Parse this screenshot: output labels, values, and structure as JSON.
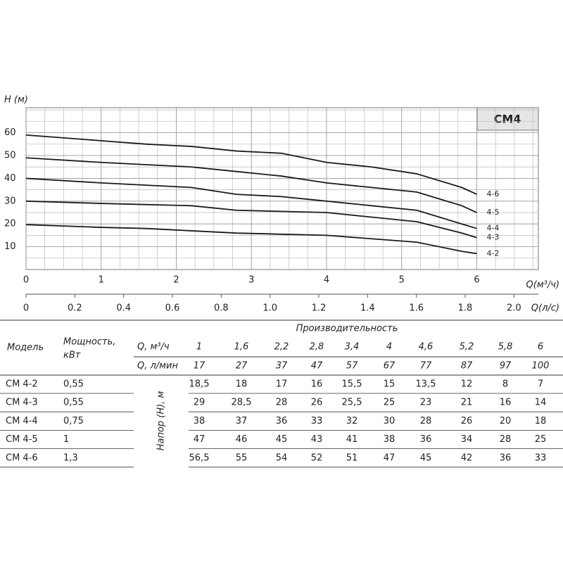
{
  "chart_data": {
    "type": "line",
    "title": "CM4",
    "y_label": "H (м)",
    "x_label": "Q(м³/ч)",
    "x2_label": "Q(л/с)",
    "x": [
      0,
      1,
      1.6,
      2.2,
      2.8,
      3.4,
      4,
      4.6,
      5.2,
      5.8,
      6
    ],
    "xlim": [
      0,
      6.82
    ],
    "xticks": [
      0,
      1,
      2,
      3,
      4,
      5,
      6
    ],
    "x2lim": [
      0,
      2.1
    ],
    "x2ticks": [
      0,
      0.2,
      0.4,
      0.6,
      0.8,
      {
        "value": 1,
        "label": "1.0"
      },
      1.2,
      1.4,
      1.6,
      1.8,
      {
        "value": 2,
        "label": "2.0"
      }
    ],
    "ylim": [
      0,
      71
    ],
    "yticks": [
      10,
      20,
      30,
      40,
      50,
      60
    ],
    "grid": true,
    "series": [
      {
        "name": "4-2",
        "color": "#1a1a1a",
        "values": [
          19.7,
          18.5,
          18,
          17,
          16,
          15.5,
          15,
          13.5,
          12,
          8,
          7
        ]
      },
      {
        "name": "4-3",
        "color": "#1a1a1a",
        "values": [
          30,
          29,
          28.5,
          28,
          26,
          25.5,
          25,
          23,
          21,
          16,
          14
        ]
      },
      {
        "name": "4-4",
        "color": "#1a1a1a",
        "values": [
          40,
          38,
          37,
          36,
          33,
          32,
          30,
          28,
          26,
          20,
          18
        ]
      },
      {
        "name": "4-5",
        "color": "#1a1a1a",
        "values": [
          49,
          47,
          46,
          45,
          43,
          41,
          38,
          36,
          34,
          28,
          25
        ]
      },
      {
        "name": "4-6",
        "color": "#1a1a1a",
        "values": [
          59,
          56.5,
          55,
          54,
          52,
          51,
          47,
          45,
          42,
          36,
          33
        ]
      }
    ]
  },
  "table": {
    "model_header": "Модель",
    "power_header": [
      "Мощность,",
      "кВт"
    ],
    "performance_header": "Производительность",
    "q_m3h_label": "Q, м³/ч",
    "q_lpm_label": "Q, л/мин",
    "head_label": "Напор (Н), м",
    "q_m3h": [
      "1",
      "1,6",
      "2,2",
      "2,8",
      "3,4",
      "4",
      "4,6",
      "5,2",
      "5,8",
      "6"
    ],
    "q_lpm": [
      "17",
      "27",
      "37",
      "47",
      "57",
      "67",
      "77",
      "87",
      "97",
      "100"
    ],
    "rows": [
      {
        "model": "CM 4-2",
        "power": "0,55",
        "head": [
          "18,5",
          "18",
          "17",
          "16",
          "15,5",
          "15",
          "13,5",
          "12",
          "8",
          "7"
        ]
      },
      {
        "model": "CM 4-3",
        "power": "0,55",
        "head": [
          "29",
          "28,5",
          "28",
          "26",
          "25,5",
          "25",
          "23",
          "21",
          "16",
          "14"
        ]
      },
      {
        "model": "CM 4-4",
        "power": "0,75",
        "head": [
          "38",
          "37",
          "36",
          "33",
          "32",
          "30",
          "28",
          "26",
          "20",
          "18"
        ]
      },
      {
        "model": "CM 4-5",
        "power": "1",
        "head": [
          "47",
          "46",
          "45",
          "43",
          "41",
          "38",
          "36",
          "34",
          "28",
          "25"
        ]
      },
      {
        "model": "CM 4-6",
        "power": "1,3",
        "head": [
          "56,5",
          "55",
          "54",
          "52",
          "51",
          "47",
          "45",
          "42",
          "36",
          "33"
        ]
      }
    ]
  }
}
